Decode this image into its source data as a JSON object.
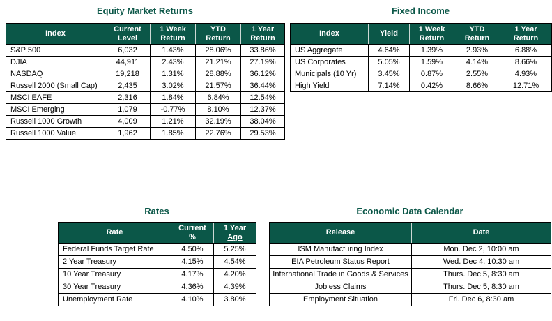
{
  "colors": {
    "header_green": "#0b5748",
    "title_green": "#0b5748",
    "table_border": "#000000",
    "header_divider": "#cdd8d4",
    "header_text": "#ffffff",
    "body_text": "#000000"
  },
  "tables": {
    "equity": {
      "title": "Equity Market Returns",
      "headers": [
        {
          "lines": [
            "Index"
          ]
        },
        {
          "lines": [
            "Current",
            "Level"
          ]
        },
        {
          "lines": [
            "1 Week",
            "Return"
          ]
        },
        {
          "lines": [
            "YTD",
            "Return"
          ]
        },
        {
          "lines": [
            "1 Year",
            "Return"
          ]
        }
      ],
      "rows": [
        [
          "S&P 500",
          "6,032",
          "1.43%",
          "28.06%",
          "33.86%"
        ],
        [
          "DJIA",
          "44,911",
          "2.43%",
          "21.21%",
          "27.19%"
        ],
        [
          "NASDAQ",
          "19,218",
          "1.31%",
          "28.88%",
          "36.12%"
        ],
        [
          "Russell 2000 (Small Cap)",
          "2,435",
          "3.02%",
          "21.57%",
          "36.44%"
        ],
        [
          "MSCI EAFE",
          "2,316",
          "1.84%",
          "6.84%",
          "12.54%"
        ],
        [
          "MSCI Emerging",
          "1,079",
          "-0.77%",
          "8.10%",
          "12.37%"
        ],
        [
          "Russell 1000 Growth",
          "4,009",
          "1.21%",
          "32.19%",
          "38.04%"
        ],
        [
          "Russell 1000 Value",
          "1,962",
          "1.85%",
          "22.76%",
          "29.53%"
        ]
      ]
    },
    "fixed_income": {
      "title": "Fixed Income",
      "headers": [
        {
          "lines": [
            "Index"
          ]
        },
        {
          "lines": [
            "Yield"
          ]
        },
        {
          "lines": [
            "1 Week",
            "Return"
          ]
        },
        {
          "lines": [
            "YTD",
            "Return"
          ]
        },
        {
          "lines": [
            "1 Year",
            "Return"
          ]
        }
      ],
      "rows": [
        [
          "US Aggregate",
          "4.64%",
          "1.39%",
          "2.93%",
          "6.88%"
        ],
        [
          "US Corporates",
          "5.05%",
          "1.59%",
          "4.14%",
          "8.66%"
        ],
        [
          "Municipals (10 Yr)",
          "3.45%",
          "0.87%",
          "2.55%",
          "4.93%"
        ],
        [
          "High Yield",
          "7.14%",
          "0.42%",
          "8.66%",
          "12.71%"
        ]
      ]
    },
    "rates": {
      "title": "Rates",
      "headers": [
        {
          "lines": [
            "Rate"
          ]
        },
        {
          "lines": [
            "Current",
            "%"
          ]
        },
        {
          "lines": [
            "1 Year",
            "Ago"
          ],
          "underline_line": 1
        }
      ],
      "rows": [
        [
          "Federal Funds Target Rate",
          "4.50%",
          "5.25%"
        ],
        [
          "2 Year Treasury",
          "4.15%",
          "4.54%"
        ],
        [
          "10 Year Treasury",
          "4.17%",
          "4.20%"
        ],
        [
          "30 Year Treasury",
          "4.36%",
          "4.39%"
        ],
        [
          "Unemployment Rate",
          "4.10%",
          "3.80%"
        ]
      ]
    },
    "calendar": {
      "title": "Economic Data Calendar",
      "headers": [
        {
          "lines": [
            "Release"
          ]
        },
        {
          "lines": [
            "Date"
          ]
        }
      ],
      "rows": [
        [
          "ISM Manufacturing Index",
          "Mon. Dec 2, 10:00 am"
        ],
        [
          "EIA Petroleum Status Report",
          "Wed. Dec 4, 10:30 am"
        ],
        [
          "International Trade in Goods & Services",
          "Thurs. Dec 5, 8:30 am"
        ],
        [
          "Jobless Claims",
          "Thurs. Dec 5, 8:30 am"
        ],
        [
          "Employment Situation",
          "Fri. Dec 6, 8:30 am"
        ]
      ]
    }
  }
}
